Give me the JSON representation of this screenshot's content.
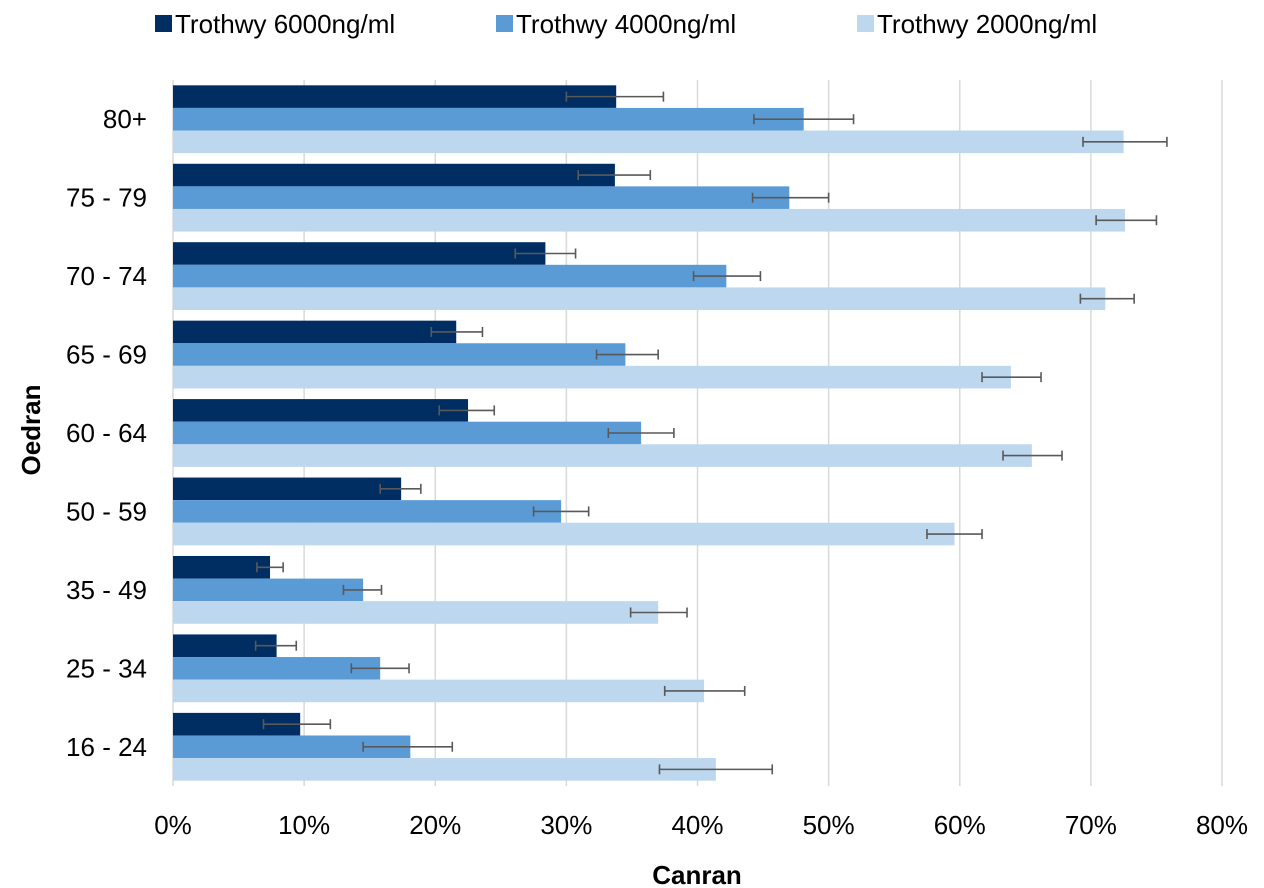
{
  "chart_data": {
    "type": "bar",
    "orientation": "horizontal",
    "categories": [
      "80+",
      "75 - 79",
      "70 - 74",
      "65 - 69",
      "60 - 64",
      "50 - 59",
      "35 - 49",
      "25 - 34",
      "16 - 24"
    ],
    "series": [
      {
        "name": "Trothwy 6000ng/ml",
        "color": "#002d62",
        "values": [
          33.8,
          33.7,
          28.4,
          21.6,
          22.5,
          17.4,
          7.4,
          7.9,
          9.7
        ],
        "error_low": [
          30.0,
          30.9,
          26.1,
          19.7,
          20.3,
          15.8,
          6.4,
          6.3,
          6.9
        ],
        "error_high": [
          37.4,
          36.4,
          30.7,
          23.6,
          24.5,
          18.9,
          8.4,
          9.4,
          12.0
        ]
      },
      {
        "name": "Trothwy 4000ng/ml",
        "color": "#5b9bd5",
        "values": [
          48.1,
          47.0,
          42.2,
          34.5,
          35.7,
          29.6,
          14.5,
          15.8,
          18.1
        ],
        "error_low": [
          44.3,
          44.2,
          39.7,
          32.3,
          33.2,
          27.5,
          13.0,
          13.6,
          14.5
        ],
        "error_high": [
          51.9,
          50.0,
          44.8,
          37.0,
          38.2,
          31.7,
          15.9,
          18.0,
          21.3
        ]
      },
      {
        "name": "Trothwy 2000ng/ml",
        "color": "#bdd7ee",
        "values": [
          72.5,
          72.6,
          71.1,
          63.9,
          65.5,
          59.6,
          37.0,
          40.5,
          41.4
        ],
        "error_low": [
          69.4,
          70.4,
          69.2,
          61.7,
          63.3,
          57.5,
          34.9,
          37.5,
          37.1
        ],
        "error_high": [
          75.8,
          75.0,
          73.3,
          66.2,
          67.8,
          61.7,
          39.2,
          43.6,
          45.7
        ]
      }
    ],
    "xlabel": "Canran",
    "ylabel": "Oedran",
    "xlim": [
      0,
      80
    ],
    "xticks": [
      "0%",
      "10%",
      "20%",
      "30%",
      "40%",
      "50%",
      "60%",
      "70%",
      "80%"
    ],
    "grid": "vertical",
    "legend_position": "top"
  }
}
